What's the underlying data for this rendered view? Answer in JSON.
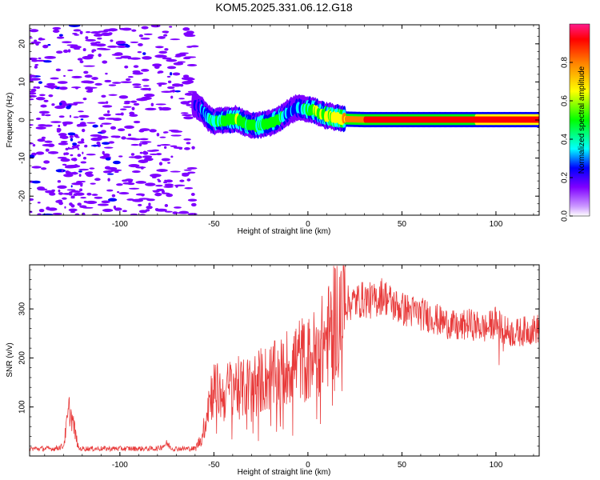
{
  "title": "KOM5.2025.331.06.12.G18",
  "chart_data": [
    {
      "type": "heatmap",
      "xlabel": "Height of straight line (km)",
      "ylabel": "Frequency (Hz)",
      "xlim": [
        -148,
        123
      ],
      "ylim": [
        -25,
        25
      ],
      "x_ticks": [
        -100,
        -50,
        0,
        50,
        100
      ],
      "y_ticks": [
        -20,
        -10,
        0,
        10,
        20
      ],
      "colorbar": {
        "label": "Normalized spectral amplitude",
        "range": [
          0,
          1
        ],
        "ticks": [
          0.0,
          0.2,
          0.4,
          0.6,
          0.8
        ]
      },
      "ridge": {
        "x": [
          -60,
          -57,
          -53,
          -50,
          -47,
          -43,
          -38,
          -33,
          -28,
          -24,
          -20,
          -16,
          -12,
          -9,
          -6,
          -3,
          0,
          3,
          6,
          9,
          12,
          15,
          18,
          22,
          30,
          40,
          60,
          80,
          100,
          123
        ],
        "y": [
          4,
          3,
          0.5,
          -0.5,
          -0.2,
          0,
          0.3,
          -1,
          -1.5,
          -1.2,
          -0.8,
          0,
          1.5,
          2.5,
          3.2,
          3,
          2.8,
          2.6,
          1.8,
          1.2,
          1,
          0.6,
          0.3,
          0.2,
          0.1,
          0.1,
          0.1,
          0.1,
          0.1,
          0.1
        ],
        "amplitude": [
          0.18,
          0.2,
          0.3,
          0.35,
          0.4,
          0.4,
          0.45,
          0.4,
          0.38,
          0.4,
          0.45,
          0.45,
          0.3,
          0.2,
          0.25,
          0.3,
          0.4,
          0.45,
          0.45,
          0.5,
          0.55,
          0.55,
          0.6,
          0.7,
          0.8,
          0.85,
          0.9,
          0.9,
          0.92,
          0.92
        ]
      }
    },
    {
      "type": "line",
      "xlabel": "Height of straight line (km)",
      "ylabel": "SNR (v/v)",
      "xlim": [
        -148,
        123
      ],
      "ylim": [
        0,
        390
      ],
      "x_ticks": [
        -100,
        -50,
        0,
        50,
        100
      ],
      "y_ticks": [
        100,
        200,
        300
      ],
      "color": "#e83a3a",
      "envelope": {
        "x": [
          -148,
          -135,
          -130,
          -127,
          -125,
          -122,
          -110,
          -80,
          -75,
          -72,
          -60,
          -56,
          -53,
          -50,
          -45,
          -40,
          -35,
          -30,
          -25,
          -20,
          -15,
          -10,
          -5,
          0,
          5,
          10,
          12,
          15,
          20,
          25,
          30,
          35,
          40,
          45,
          50,
          55,
          60,
          65,
          70,
          75,
          80,
          85,
          90,
          95,
          100,
          105,
          110,
          115,
          123
        ],
        "y": [
          15,
          15,
          20,
          95,
          70,
          15,
          15,
          15,
          25,
          15,
          15,
          40,
          110,
          140,
          120,
          150,
          135,
          145,
          155,
          160,
          165,
          185,
          200,
          195,
          215,
          240,
          250,
          290,
          310,
          315,
          320,
          315,
          330,
          310,
          300,
          295,
          290,
          285,
          275,
          270,
          260,
          270,
          265,
          260,
          275,
          255,
          250,
          255,
          260
        ]
      }
    }
  ]
}
